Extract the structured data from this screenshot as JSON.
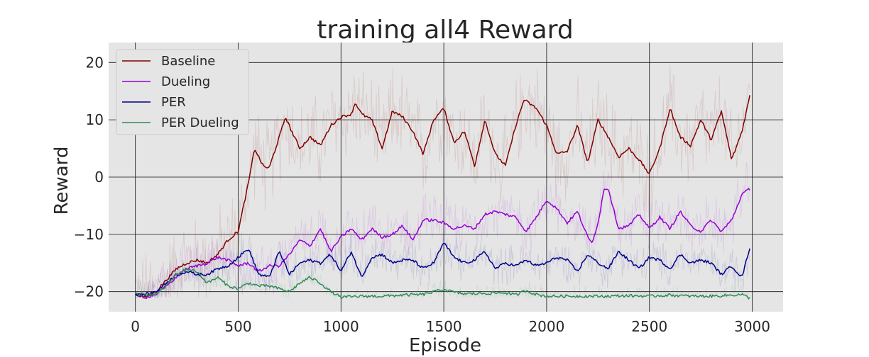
{
  "chart_data": {
    "type": "line",
    "title": "training all4 Reward",
    "xlabel": "Episode",
    "ylabel": "Reward",
    "xlim": [
      -130,
      3150
    ],
    "ylim": [
      -23.5,
      23.5
    ],
    "xticks": [
      0,
      500,
      1000,
      1500,
      2000,
      2500,
      3000
    ],
    "yticks": [
      -20,
      -10,
      0,
      10,
      20
    ],
    "grid": true,
    "legend_position": "top-left",
    "background": "#e5e5e5",
    "series": [
      {
        "name": "Baseline",
        "color": "#800000",
        "raw_noise": 7,
        "x": [
          0,
          50,
          100,
          150,
          200,
          250,
          300,
          350,
          400,
          450,
          500,
          550,
          580,
          620,
          650,
          700,
          730,
          760,
          800,
          850,
          900,
          950,
          1000,
          1050,
          1070,
          1100,
          1150,
          1200,
          1250,
          1300,
          1350,
          1400,
          1450,
          1500,
          1550,
          1600,
          1650,
          1700,
          1750,
          1800,
          1850,
          1890,
          1950,
          2000,
          2050,
          2100,
          2150,
          2200,
          2250,
          2300,
          2350,
          2400,
          2450,
          2500,
          2550,
          2600,
          2650,
          2700,
          2750,
          2800,
          2850,
          2900,
          2950,
          2990
        ],
        "y": [
          -20.5,
          -21,
          -20,
          -18,
          -16,
          -15,
          -14.5,
          -15,
          -13.5,
          -11,
          -9.5,
          -1,
          5,
          2,
          1.5,
          7,
          10.5,
          8,
          5,
          7,
          5.5,
          9,
          10.5,
          11,
          13,
          11,
          10,
          5,
          11.5,
          10.5,
          8,
          4,
          10,
          12,
          6,
          8,
          2,
          10,
          4,
          2,
          9,
          13.5,
          12,
          9,
          4,
          4.5,
          9,
          2.5,
          10,
          7,
          3.5,
          5,
          3,
          0.5,
          5,
          12,
          7,
          5.5,
          10,
          6.5,
          11.5,
          3,
          8,
          14.5
        ]
      },
      {
        "name": "Dueling",
        "color": "#9400d3",
        "raw_noise": 4,
        "x": [
          0,
          50,
          100,
          150,
          200,
          250,
          300,
          350,
          400,
          450,
          500,
          550,
          600,
          650,
          700,
          750,
          800,
          850,
          900,
          950,
          1000,
          1050,
          1100,
          1150,
          1200,
          1250,
          1300,
          1350,
          1400,
          1450,
          1500,
          1550,
          1600,
          1650,
          1700,
          1750,
          1800,
          1850,
          1900,
          1950,
          2000,
          2050,
          2100,
          2150,
          2200,
          2220,
          2250,
          2280,
          2300,
          2350,
          2400,
          2450,
          2500,
          2550,
          2600,
          2650,
          2700,
          2750,
          2800,
          2850,
          2900,
          2950,
          2990
        ],
        "y": [
          -20.5,
          -21,
          -20.5,
          -19,
          -17.5,
          -16,
          -15.5,
          -15,
          -14,
          -14.5,
          -15.5,
          -15,
          -16.5,
          -15.5,
          -15.5,
          -13.5,
          -11,
          -12,
          -9,
          -13,
          -10.5,
          -9,
          -11,
          -9,
          -10.5,
          -10,
          -8.5,
          -11,
          -7.5,
          -7.5,
          -8,
          -9,
          -8.5,
          -9,
          -6.5,
          -6,
          -6.5,
          -7,
          -9.5,
          -7,
          -4,
          -5.5,
          -8,
          -6,
          -10.5,
          -11.5,
          -8,
          -2,
          -2,
          -9,
          -8.5,
          -6.5,
          -9,
          -7,
          -9,
          -6,
          -8.5,
          -9.5,
          -7.5,
          -9.5,
          -7.5,
          -3,
          -2
        ]
      },
      {
        "name": "PER",
        "color": "#00008b",
        "raw_noise": 3,
        "x": [
          0,
          50,
          100,
          150,
          200,
          250,
          300,
          350,
          400,
          450,
          500,
          550,
          600,
          650,
          700,
          750,
          800,
          850,
          900,
          950,
          1000,
          1050,
          1100,
          1150,
          1200,
          1250,
          1300,
          1350,
          1400,
          1450,
          1500,
          1550,
          1600,
          1650,
          1700,
          1750,
          1800,
          1850,
          1900,
          1950,
          2000,
          2050,
          2100,
          2150,
          2200,
          2250,
          2300,
          2350,
          2400,
          2450,
          2500,
          2550,
          2600,
          2650,
          2700,
          2750,
          2800,
          2850,
          2900,
          2950,
          2990
        ],
        "y": [
          -20.5,
          -20.5,
          -20,
          -18.5,
          -17,
          -16.5,
          -17,
          -17,
          -16,
          -15.5,
          -14,
          -12.5,
          -17,
          -17.5,
          -13,
          -17,
          -15,
          -14.5,
          -15,
          -13.5,
          -16.5,
          -13,
          -17.5,
          -14,
          -13.5,
          -15,
          -14.5,
          -14.5,
          -16,
          -15,
          -11.5,
          -14,
          -15,
          -14.5,
          -13,
          -16,
          -15,
          -15.5,
          -14.5,
          -15.5,
          -15,
          -14,
          -14.5,
          -16.5,
          -13.5,
          -15,
          -16,
          -13,
          -14.5,
          -16,
          -14,
          -14.5,
          -16,
          -13.5,
          -15,
          -14.5,
          -15,
          -17,
          -15.5,
          -17.5,
          -12
        ]
      },
      {
        "name": "PER Dueling",
        "color": "#2e8b57",
        "raw_noise": 1.5,
        "x": [
          0,
          50,
          100,
          150,
          200,
          250,
          300,
          350,
          400,
          450,
          500,
          550,
          600,
          650,
          700,
          750,
          800,
          850,
          900,
          950,
          1000,
          1100,
          1200,
          1300,
          1400,
          1500,
          1550,
          1600,
          1700,
          1800,
          1850,
          1900,
          1950,
          2000,
          2100,
          2200,
          2300,
          2400,
          2500,
          2600,
          2700,
          2800,
          2900,
          2950,
          2990
        ],
        "y": [
          -20.5,
          -20.5,
          -20.5,
          -19,
          -17,
          -16,
          -16.5,
          -18.5,
          -17.5,
          -19,
          -19.5,
          -18.5,
          -19,
          -19,
          -19.5,
          -20,
          -18.5,
          -17.5,
          -18.5,
          -20,
          -21,
          -20.8,
          -20.8,
          -20.6,
          -20.5,
          -19.6,
          -20.1,
          -20.4,
          -20.3,
          -20.2,
          -20.6,
          -19.8,
          -20.5,
          -20.8,
          -20.8,
          -20.8,
          -20.8,
          -20.7,
          -20.8,
          -20.6,
          -20.8,
          -20.8,
          -20.6,
          -20.5,
          -21.2
        ]
      }
    ]
  }
}
